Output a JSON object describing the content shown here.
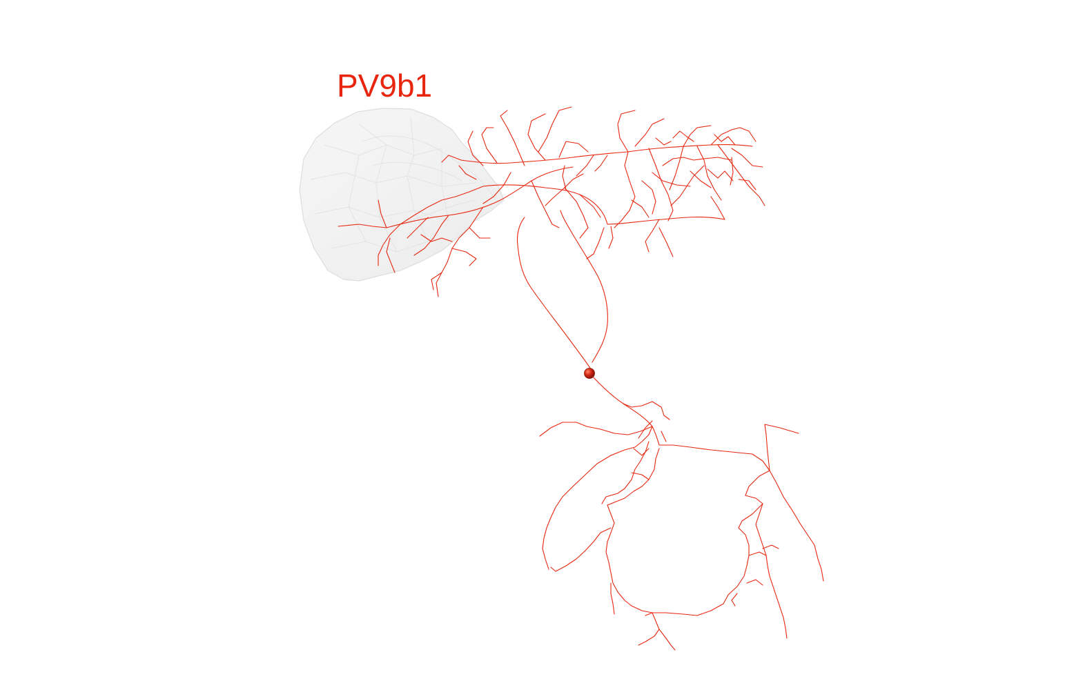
{
  "figure": {
    "label": "PV9b1",
    "colors": {
      "neuron": "#e8260f",
      "soma": "#c21c0a",
      "neuropil_fill": "#f1f1f1",
      "neuropil_edge": "#dcdcdc",
      "background": "#ffffff"
    }
  }
}
